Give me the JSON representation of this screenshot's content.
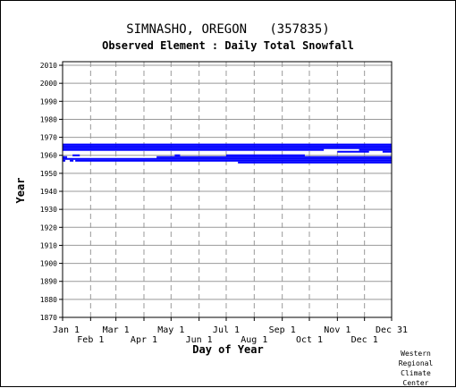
{
  "chart_data": {
    "type": "bar",
    "title": "SIMNASHO, OREGON   (357835)",
    "subtitle": "Observed Element : Daily Total Snowfall",
    "xlabel": "Day of Year",
    "ylabel": "Year",
    "ylim": [
      1870,
      2012
    ],
    "yticks": [
      1870,
      1880,
      1890,
      1900,
      1910,
      1920,
      1930,
      1940,
      1950,
      1960,
      1970,
      1980,
      1990,
      2000,
      2010
    ],
    "xlim": [
      1,
      365
    ],
    "xticks": [
      {
        "day": 1,
        "label": "Jan 1",
        "row": 1
      },
      {
        "day": 32,
        "label": "Feb 1",
        "row": 2
      },
      {
        "day": 60,
        "label": "Mar 1",
        "row": 1
      },
      {
        "day": 91,
        "label": "Apr 1",
        "row": 2
      },
      {
        "day": 121,
        "label": "May 1",
        "row": 1
      },
      {
        "day": 152,
        "label": "Jun 1",
        "row": 2
      },
      {
        "day": 182,
        "label": "Jul 1",
        "row": 1
      },
      {
        "day": 213,
        "label": "Aug 1",
        "row": 2
      },
      {
        "day": 244,
        "label": "Sep 1",
        "row": 1
      },
      {
        "day": 274,
        "label": "Oct 1",
        "row": 2
      },
      {
        "day": 305,
        "label": "Nov 1",
        "row": 1
      },
      {
        "day": 335,
        "label": "Dec 1",
        "row": 2
      },
      {
        "day": 365,
        "label": "Dec 31",
        "row": 1
      }
    ],
    "grid": true,
    "bar_color": "#0000ff",
    "series": [
      {
        "values": [
          {
            "year": 1966,
            "start": 1,
            "end": 365
          },
          {
            "year": 1965,
            "start": 1,
            "end": 365
          },
          {
            "year": 1964,
            "start": 1,
            "end": 365
          },
          {
            "year": 1963,
            "start": 1,
            "end": 290
          },
          {
            "year": 1963,
            "start": 329,
            "end": 365
          },
          {
            "year": 1962,
            "start": 305,
            "end": 340
          },
          {
            "year": 1962,
            "start": 355,
            "end": 365
          },
          {
            "year": 1960,
            "start": 12,
            "end": 20
          },
          {
            "year": 1960,
            "start": 125,
            "end": 131
          },
          {
            "year": 1960,
            "start": 182,
            "end": 232
          },
          {
            "year": 1960,
            "start": 232,
            "end": 269
          },
          {
            "year": 1959,
            "start": 1,
            "end": 6
          },
          {
            "year": 1959,
            "start": 1,
            "end": 3
          },
          {
            "year": 1959,
            "start": 105,
            "end": 365
          },
          {
            "year": 1958,
            "start": 1,
            "end": 365
          },
          {
            "year": 1957,
            "start": 1,
            "end": 4
          },
          {
            "year": 1957,
            "start": 9,
            "end": 13
          },
          {
            "year": 1957,
            "start": 15,
            "end": 365
          },
          {
            "year": 1956,
            "start": 195,
            "end": 365
          }
        ]
      }
    ]
  },
  "credit": {
    "line1": "Western",
    "line2": "Regional",
    "line3": "Climate",
    "line4": "Center"
  }
}
